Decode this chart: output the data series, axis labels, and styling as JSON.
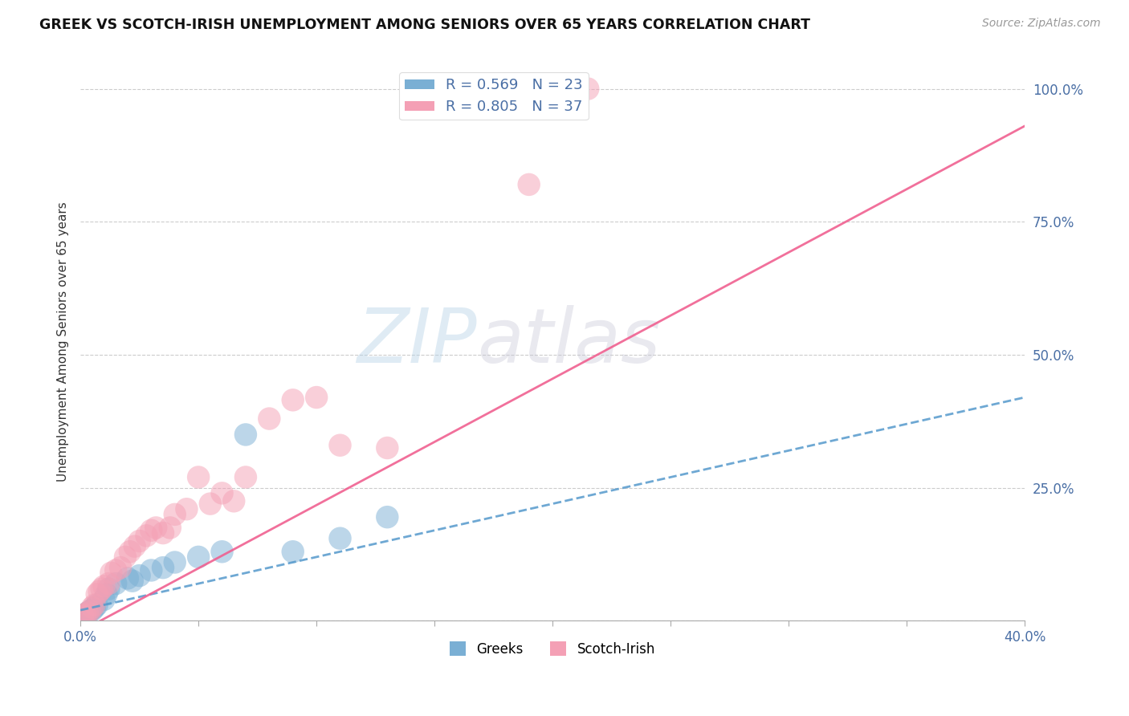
{
  "title": "GREEK VS SCOTCH-IRISH UNEMPLOYMENT AMONG SENIORS OVER 65 YEARS CORRELATION CHART",
  "source": "Source: ZipAtlas.com",
  "ylabel": "Unemployment Among Seniors over 65 years",
  "xlim": [
    0.0,
    0.4
  ],
  "ylim": [
    0.0,
    1.05
  ],
  "xticks": [
    0.0,
    0.05,
    0.1,
    0.15,
    0.2,
    0.25,
    0.3,
    0.35,
    0.4
  ],
  "xticklabels": [
    "0.0%",
    "",
    "",
    "",
    "",
    "",
    "",
    "",
    "40.0%"
  ],
  "yticks_right": [
    0.0,
    0.25,
    0.5,
    0.75,
    1.0
  ],
  "yticklabels_right": [
    "",
    "25.0%",
    "50.0%",
    "75.0%",
    "100.0%"
  ],
  "greek_color": "#7aafd4",
  "scotch_color": "#f4a0b5",
  "greek_line_color": "#5599cc",
  "scotch_line_color": "#f06090",
  "greek_R": 0.569,
  "greek_N": 23,
  "scotch_R": 0.805,
  "scotch_N": 37,
  "legend_text_color": "#4a6fa5",
  "watermark_color": "#c8dff0",
  "background_color": "#ffffff",
  "grid_color": "#cccccc",
  "greek_points_x": [
    0.001,
    0.002,
    0.003,
    0.004,
    0.005,
    0.006,
    0.007,
    0.01,
    0.011,
    0.012,
    0.015,
    0.02,
    0.022,
    0.025,
    0.03,
    0.035,
    0.04,
    0.05,
    0.06,
    0.07,
    0.09,
    0.11,
    0.13
  ],
  "greek_points_y": [
    0.01,
    0.012,
    0.015,
    0.018,
    0.02,
    0.025,
    0.03,
    0.04,
    0.05,
    0.06,
    0.07,
    0.08,
    0.075,
    0.085,
    0.095,
    0.1,
    0.11,
    0.12,
    0.13,
    0.35,
    0.13,
    0.155,
    0.195
  ],
  "scotch_points_x": [
    0.001,
    0.002,
    0.003,
    0.004,
    0.005,
    0.006,
    0.007,
    0.008,
    0.009,
    0.01,
    0.012,
    0.013,
    0.015,
    0.017,
    0.019,
    0.021,
    0.023,
    0.025,
    0.028,
    0.03,
    0.032,
    0.035,
    0.038,
    0.04,
    0.045,
    0.05,
    0.055,
    0.06,
    0.065,
    0.07,
    0.08,
    0.09,
    0.1,
    0.11,
    0.13,
    0.19,
    0.215
  ],
  "scotch_points_y": [
    0.01,
    0.012,
    0.015,
    0.018,
    0.025,
    0.03,
    0.05,
    0.055,
    0.06,
    0.065,
    0.07,
    0.09,
    0.095,
    0.1,
    0.12,
    0.13,
    0.14,
    0.15,
    0.16,
    0.17,
    0.175,
    0.165,
    0.175,
    0.2,
    0.21,
    0.27,
    0.22,
    0.24,
    0.225,
    0.27,
    0.38,
    0.415,
    0.42,
    0.33,
    0.325,
    0.82,
    1.0
  ],
  "greek_line_x": [
    0.0,
    0.4
  ],
  "greek_line_y": [
    0.02,
    0.42
  ],
  "scotch_line_x": [
    0.0,
    0.4
  ],
  "scotch_line_y": [
    -0.02,
    0.93
  ]
}
